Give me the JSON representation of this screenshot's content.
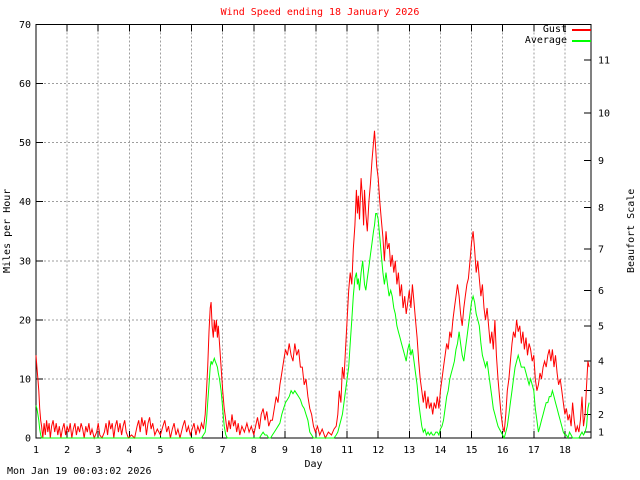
{
  "timestamp": "Mon Jan 19 00:03:02 2026",
  "colors": {
    "title": "#ff0000",
    "gust": "#ff0000",
    "average": "#00ff00",
    "grid": "#9e9e9e",
    "axis": "#000000",
    "background": "#ffffff"
  },
  "chart_data": {
    "type": "line",
    "title": "Wind Speed ending 18 January 2026",
    "xlabel": "Day",
    "ylabel": "Miles per Hour",
    "y2label": "Beaufort Scale",
    "xlim": [
      1,
      18.84
    ],
    "ylim": [
      0,
      70
    ],
    "xticks": [
      1,
      2,
      3,
      4,
      5,
      6,
      7,
      8,
      9,
      10,
      11,
      12,
      13,
      14,
      15,
      16,
      17,
      18
    ],
    "yticks": [
      0,
      10,
      20,
      30,
      40,
      50,
      60,
      70
    ],
    "y2tick_values": [
      1,
      2,
      3,
      4,
      5,
      6,
      7,
      8,
      9,
      10,
      11
    ],
    "y2tick_mph": [
      1,
      4,
      8,
      13,
      19,
      25,
      32,
      39,
      47,
      55,
      64
    ],
    "grid": true,
    "legend_position": "top-right",
    "series": [
      {
        "name": "Gust",
        "color": "#ff0000"
      },
      {
        "name": "Average",
        "color": "#00ff00"
      }
    ],
    "points": [
      [
        1.0,
        14,
        5.5
      ],
      [
        1.03,
        12,
        5
      ],
      [
        1.06,
        10,
        4
      ],
      [
        1.09,
        8,
        3
      ],
      [
        1.12,
        5,
        1.5
      ],
      [
        1.15,
        3,
        0.5
      ],
      [
        1.18,
        2,
        0
      ],
      [
        1.22,
        0,
        0
      ],
      [
        1.26,
        2.5,
        0
      ],
      [
        1.3,
        0.5,
        0
      ],
      [
        1.34,
        3,
        0
      ],
      [
        1.38,
        1,
        0
      ],
      [
        1.42,
        2.5,
        0
      ],
      [
        1.46,
        0,
        0
      ],
      [
        1.5,
        2,
        0
      ],
      [
        1.55,
        3,
        0
      ],
      [
        1.6,
        1,
        0
      ],
      [
        1.65,
        2.5,
        0
      ],
      [
        1.7,
        0.5,
        0
      ],
      [
        1.75,
        2,
        0
      ],
      [
        1.8,
        0,
        0
      ],
      [
        1.85,
        1.5,
        0
      ],
      [
        1.9,
        2.5,
        0
      ],
      [
        1.95,
        0.5,
        0
      ],
      [
        2.0,
        2,
        0
      ],
      [
        2.05,
        1,
        0
      ],
      [
        2.1,
        2.5,
        0
      ],
      [
        2.15,
        0,
        0
      ],
      [
        2.2,
        1.5,
        0
      ],
      [
        2.25,
        2.5,
        0
      ],
      [
        2.3,
        0.5,
        0
      ],
      [
        2.35,
        2,
        0
      ],
      [
        2.4,
        1,
        0
      ],
      [
        2.45,
        2.5,
        0
      ],
      [
        2.5,
        1.5,
        0
      ],
      [
        2.55,
        0,
        0
      ],
      [
        2.6,
        2,
        0
      ],
      [
        2.65,
        1,
        0
      ],
      [
        2.7,
        2.5,
        0
      ],
      [
        2.75,
        0.5,
        0
      ],
      [
        2.8,
        1.5,
        0
      ],
      [
        2.87,
        0,
        0
      ],
      [
        2.95,
        1,
        0
      ],
      [
        3.0,
        2.5,
        0
      ],
      [
        3.05,
        0.5,
        0
      ],
      [
        3.12,
        0,
        0
      ],
      [
        3.2,
        1,
        0
      ],
      [
        3.25,
        2.5,
        0
      ],
      [
        3.3,
        0.5,
        0
      ],
      [
        3.35,
        3,
        0
      ],
      [
        3.4,
        1.5,
        0
      ],
      [
        3.45,
        2.5,
        0
      ],
      [
        3.5,
        0,
        0
      ],
      [
        3.55,
        2,
        0
      ],
      [
        3.6,
        3,
        0
      ],
      [
        3.65,
        1,
        0
      ],
      [
        3.7,
        2.5,
        0
      ],
      [
        3.75,
        0.5,
        0
      ],
      [
        3.8,
        2,
        0
      ],
      [
        3.85,
        3,
        0
      ],
      [
        3.9,
        1,
        0
      ],
      [
        3.97,
        0,
        0
      ],
      [
        4.07,
        0.5,
        0
      ],
      [
        4.17,
        0,
        0
      ],
      [
        4.25,
        2,
        0
      ],
      [
        4.3,
        3,
        0
      ],
      [
        4.35,
        1,
        0
      ],
      [
        4.4,
        3.5,
        0
      ],
      [
        4.45,
        2,
        0
      ],
      [
        4.5,
        3,
        0
      ],
      [
        4.55,
        0.5,
        0
      ],
      [
        4.6,
        2.5,
        0
      ],
      [
        4.65,
        3.5,
        0
      ],
      [
        4.7,
        1.5,
        0
      ],
      [
        4.75,
        2.5,
        0
      ],
      [
        4.82,
        0.5,
        0
      ],
      [
        4.9,
        1.5,
        0
      ],
      [
        5.0,
        0.5,
        0
      ],
      [
        5.08,
        2,
        0
      ],
      [
        5.14,
        3,
        0
      ],
      [
        5.2,
        1,
        0
      ],
      [
        5.26,
        2,
        0
      ],
      [
        5.32,
        0,
        0
      ],
      [
        5.38,
        1.5,
        0
      ],
      [
        5.44,
        2.5,
        0
      ],
      [
        5.5,
        0.5,
        0
      ],
      [
        5.56,
        1.5,
        0
      ],
      [
        5.63,
        0,
        0
      ],
      [
        5.72,
        2,
        0
      ],
      [
        5.78,
        3,
        0
      ],
      [
        5.84,
        1,
        0
      ],
      [
        5.9,
        2,
        0
      ],
      [
        5.96,
        0.5,
        0
      ],
      [
        6.02,
        1.5,
        0
      ],
      [
        6.08,
        2.5,
        0
      ],
      [
        6.14,
        0.5,
        0
      ],
      [
        6.2,
        2,
        0
      ],
      [
        6.26,
        1,
        0
      ],
      [
        6.32,
        2.5,
        0
      ],
      [
        6.38,
        1.5,
        0.5
      ],
      [
        6.44,
        4,
        1
      ],
      [
        6.48,
        8,
        3
      ],
      [
        6.52,
        12,
        6
      ],
      [
        6.56,
        18,
        9
      ],
      [
        6.6,
        22,
        12
      ],
      [
        6.63,
        23,
        13
      ],
      [
        6.66,
        19,
        12.5
      ],
      [
        6.7,
        17,
        13
      ],
      [
        6.73,
        20,
        13.5
      ],
      [
        6.76,
        18,
        13
      ],
      [
        6.8,
        20,
        12.5
      ],
      [
        6.83,
        17,
        12
      ],
      [
        6.86,
        19,
        11
      ],
      [
        6.9,
        16,
        10
      ],
      [
        6.95,
        12,
        8
      ],
      [
        7.0,
        8,
        5
      ],
      [
        7.05,
        5,
        2
      ],
      [
        7.1,
        3,
        0.5
      ],
      [
        7.15,
        1,
        0
      ],
      [
        7.2,
        3,
        0
      ],
      [
        7.25,
        1.5,
        0
      ],
      [
        7.3,
        4,
        0
      ],
      [
        7.35,
        2,
        0
      ],
      [
        7.4,
        3,
        0
      ],
      [
        7.45,
        1,
        0
      ],
      [
        7.5,
        2.5,
        0
      ],
      [
        7.55,
        0.5,
        0
      ],
      [
        7.62,
        2,
        0
      ],
      [
        7.7,
        1,
        0
      ],
      [
        7.78,
        2.5,
        0
      ],
      [
        7.85,
        1,
        0
      ],
      [
        7.92,
        2,
        0
      ],
      [
        8.0,
        0.5,
        0
      ],
      [
        8.06,
        2,
        0
      ],
      [
        8.12,
        3.5,
        0
      ],
      [
        8.18,
        1.5,
        0
      ],
      [
        8.24,
        4,
        0.5
      ],
      [
        8.3,
        5,
        1
      ],
      [
        8.36,
        3,
        0.5
      ],
      [
        8.42,
        4.5,
        0.5
      ],
      [
        8.48,
        2,
        0
      ],
      [
        8.54,
        3,
        0
      ],
      [
        8.6,
        3,
        0.5
      ],
      [
        8.66,
        5,
        1
      ],
      [
        8.72,
        7,
        1.5
      ],
      [
        8.78,
        6,
        2
      ],
      [
        8.84,
        9,
        2.5
      ],
      [
        8.9,
        11,
        4
      ],
      [
        8.96,
        13,
        5
      ],
      [
        9.02,
        15,
        6
      ],
      [
        9.08,
        14,
        6.5
      ],
      [
        9.14,
        16,
        7
      ],
      [
        9.2,
        14,
        8
      ],
      [
        9.26,
        13,
        7.5
      ],
      [
        9.32,
        16,
        8
      ],
      [
        9.38,
        14,
        7.5
      ],
      [
        9.44,
        15,
        7
      ],
      [
        9.5,
        12,
        6.5
      ],
      [
        9.56,
        12,
        5.5
      ],
      [
        9.62,
        9,
        5
      ],
      [
        9.68,
        10,
        4
      ],
      [
        9.74,
        7,
        3
      ],
      [
        9.8,
        5,
        1
      ],
      [
        9.86,
        4,
        0.5
      ],
      [
        9.92,
        2,
        0
      ],
      [
        9.98,
        1,
        0
      ],
      [
        10.05,
        2,
        0
      ],
      [
        10.12,
        0.5,
        0
      ],
      [
        10.2,
        1.5,
        0
      ],
      [
        10.3,
        0,
        0
      ],
      [
        10.4,
        1,
        0
      ],
      [
        10.5,
        0.5,
        0
      ],
      [
        10.58,
        1.5,
        0
      ],
      [
        10.65,
        2,
        0.5
      ],
      [
        10.7,
        4,
        1
      ],
      [
        10.75,
        8,
        2
      ],
      [
        10.8,
        6,
        3
      ],
      [
        10.85,
        12,
        4
      ],
      [
        10.9,
        10,
        6
      ],
      [
        10.95,
        15,
        8
      ],
      [
        11.0,
        20,
        10
      ],
      [
        11.05,
        25,
        12
      ],
      [
        11.1,
        28,
        16
      ],
      [
        11.15,
        26,
        20
      ],
      [
        11.2,
        32,
        24
      ],
      [
        11.25,
        36,
        27
      ],
      [
        11.3,
        42,
        28
      ],
      [
        11.33,
        38,
        26
      ],
      [
        11.36,
        41,
        27
      ],
      [
        11.4,
        37,
        25
      ],
      [
        11.45,
        44,
        28
      ],
      [
        11.5,
        40,
        30
      ],
      [
        11.53,
        36,
        28
      ],
      [
        11.56,
        42,
        26
      ],
      [
        11.6,
        38,
        25
      ],
      [
        11.65,
        35,
        27
      ],
      [
        11.7,
        40,
        29
      ],
      [
        11.75,
        43,
        31
      ],
      [
        11.8,
        47,
        33
      ],
      [
        11.85,
        50,
        35
      ],
      [
        11.88,
        52,
        36
      ],
      [
        11.92,
        49,
        38
      ],
      [
        11.95,
        46,
        38
      ],
      [
        12.0,
        44,
        37
      ],
      [
        12.05,
        40,
        34
      ],
      [
        12.1,
        37,
        31
      ],
      [
        12.15,
        34,
        28
      ],
      [
        12.2,
        30,
        26
      ],
      [
        12.25,
        35,
        28
      ],
      [
        12.3,
        32,
        26
      ],
      [
        12.35,
        33,
        24
      ],
      [
        12.4,
        29,
        25
      ],
      [
        12.45,
        31,
        24
      ],
      [
        12.5,
        28,
        22
      ],
      [
        12.55,
        30,
        21
      ],
      [
        12.6,
        26,
        19
      ],
      [
        12.65,
        28,
        18
      ],
      [
        12.7,
        24,
        17
      ],
      [
        12.75,
        26,
        16
      ],
      [
        12.8,
        22,
        15
      ],
      [
        12.85,
        24,
        14
      ],
      [
        12.9,
        21,
        13
      ],
      [
        12.95,
        23,
        15
      ],
      [
        13.0,
        25,
        16
      ],
      [
        13.05,
        22,
        14
      ],
      [
        13.1,
        26,
        15
      ],
      [
        13.15,
        23,
        13
      ],
      [
        13.2,
        20,
        11
      ],
      [
        13.25,
        17,
        9
      ],
      [
        13.3,
        13,
        6
      ],
      [
        13.35,
        10,
        4
      ],
      [
        13.4,
        8,
        2
      ],
      [
        13.45,
        6,
        1
      ],
      [
        13.5,
        8,
        1.5
      ],
      [
        13.55,
        5,
        0.5
      ],
      [
        13.6,
        7,
        1
      ],
      [
        13.65,
        5,
        0.5
      ],
      [
        13.7,
        6,
        1
      ],
      [
        13.75,
        4,
        0.5
      ],
      [
        13.8,
        6,
        0.5
      ],
      [
        13.85,
        5,
        1
      ],
      [
        13.9,
        7,
        1
      ],
      [
        13.95,
        5,
        0.5
      ],
      [
        14.0,
        8,
        1.5
      ],
      [
        14.05,
        10,
        2
      ],
      [
        14.1,
        12,
        3
      ],
      [
        14.15,
        14,
        5
      ],
      [
        14.2,
        16,
        7
      ],
      [
        14.25,
        15,
        8
      ],
      [
        14.3,
        18,
        10
      ],
      [
        14.35,
        17,
        11
      ],
      [
        14.4,
        20,
        12
      ],
      [
        14.45,
        22,
        13
      ],
      [
        14.5,
        24,
        15
      ],
      [
        14.55,
        26,
        16
      ],
      [
        14.6,
        24,
        18
      ],
      [
        14.65,
        21,
        16
      ],
      [
        14.7,
        19,
        14
      ],
      [
        14.75,
        22,
        13
      ],
      [
        14.8,
        24,
        15
      ],
      [
        14.85,
        26,
        17
      ],
      [
        14.9,
        27,
        19
      ],
      [
        14.95,
        30,
        21
      ],
      [
        15.0,
        33,
        23
      ],
      [
        15.05,
        35,
        24
      ],
      [
        15.1,
        32,
        23
      ],
      [
        15.15,
        28,
        21
      ],
      [
        15.2,
        30,
        20
      ],
      [
        15.25,
        27,
        19
      ],
      [
        15.3,
        24,
        16
      ],
      [
        15.35,
        26,
        14
      ],
      [
        15.4,
        22,
        13
      ],
      [
        15.45,
        20,
        12
      ],
      [
        15.5,
        22,
        13
      ],
      [
        15.55,
        19,
        11
      ],
      [
        15.6,
        16,
        9
      ],
      [
        15.65,
        18,
        7
      ],
      [
        15.7,
        15,
        5
      ],
      [
        15.75,
        20,
        4
      ],
      [
        15.8,
        14,
        3
      ],
      [
        15.85,
        10,
        2
      ],
      [
        15.9,
        7,
        1.5
      ],
      [
        15.95,
        4,
        1
      ],
      [
        16.0,
        2,
        0.5
      ],
      [
        16.05,
        1,
        0
      ],
      [
        16.1,
        4,
        1
      ],
      [
        16.15,
        8,
        2
      ],
      [
        16.2,
        10,
        4
      ],
      [
        16.25,
        13,
        6
      ],
      [
        16.3,
        16,
        8
      ],
      [
        16.35,
        18,
        10
      ],
      [
        16.4,
        17,
        12
      ],
      [
        16.45,
        20,
        13
      ],
      [
        16.5,
        18,
        14
      ],
      [
        16.55,
        19,
        13
      ],
      [
        16.6,
        16,
        12
      ],
      [
        16.65,
        18,
        12
      ],
      [
        16.7,
        15,
        12
      ],
      [
        16.75,
        17,
        11
      ],
      [
        16.8,
        14,
        10
      ],
      [
        16.85,
        16,
        9
      ],
      [
        16.9,
        15,
        10
      ],
      [
        16.95,
        13,
        9
      ],
      [
        17.0,
        14,
        8
      ],
      [
        17.05,
        10,
        5
      ],
      [
        17.1,
        8,
        3
      ],
      [
        17.15,
        9,
        1
      ],
      [
        17.2,
        11,
        2
      ],
      [
        17.25,
        10,
        3
      ],
      [
        17.3,
        12,
        4
      ],
      [
        17.35,
        13,
        5
      ],
      [
        17.4,
        12,
        6
      ],
      [
        17.45,
        14,
        6
      ],
      [
        17.5,
        15,
        7
      ],
      [
        17.55,
        13,
        7
      ],
      [
        17.6,
        15,
        8
      ],
      [
        17.65,
        12,
        7
      ],
      [
        17.7,
        14,
        6
      ],
      [
        17.75,
        11,
        5
      ],
      [
        17.8,
        9,
        4
      ],
      [
        17.85,
        10,
        3
      ],
      [
        17.9,
        8,
        2
      ],
      [
        17.95,
        6,
        1
      ],
      [
        18.0,
        4,
        0.5
      ],
      [
        18.05,
        5,
        0.5
      ],
      [
        18.1,
        3,
        0
      ],
      [
        18.15,
        4,
        1
      ],
      [
        18.2,
        2,
        0.5
      ],
      [
        18.25,
        6,
        0
      ],
      [
        18.3,
        3,
        0
      ],
      [
        18.35,
        1,
        0
      ],
      [
        18.4,
        2,
        0
      ],
      [
        18.45,
        1,
        0
      ],
      [
        18.5,
        3,
        0.5
      ],
      [
        18.55,
        7,
        1
      ],
      [
        18.6,
        2,
        0.5
      ],
      [
        18.65,
        4,
        1
      ],
      [
        18.7,
        9,
        2
      ],
      [
        18.74,
        13,
        5
      ],
      [
        18.78,
        12,
        6
      ]
    ]
  }
}
